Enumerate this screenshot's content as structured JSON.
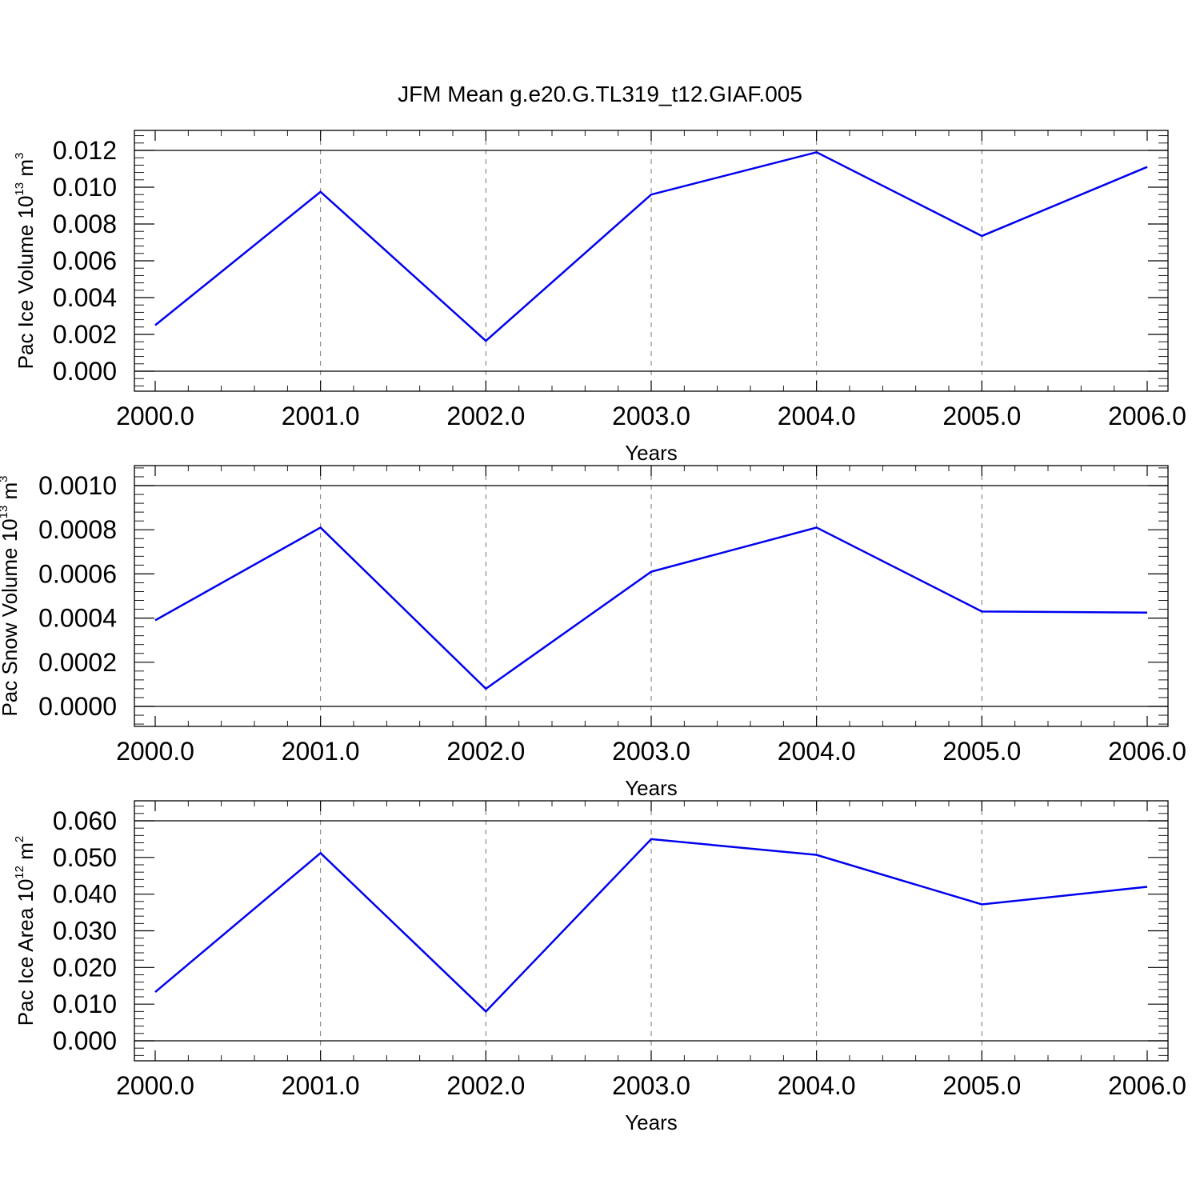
{
  "title": "JFM Mean g.e20.G.TL319_t12.GIAF.005",
  "chart_data": [
    {
      "type": "line",
      "ylabel": {
        "text": "Pac Ice Volume 10",
        "exp": "13",
        "unit": " m",
        "unit_exp": "3"
      },
      "xlabel": "Years",
      "xlim": [
        2000,
        2006
      ],
      "ylim": [
        0,
        0.012
      ],
      "xticks": [
        "2000.0",
        "2001.0",
        "2002.0",
        "2003.0",
        "2004.0",
        "2005.0",
        "2006.0"
      ],
      "yticks": [
        "0.000",
        "0.002",
        "0.004",
        "0.006",
        "0.008",
        "0.010",
        "0.012"
      ],
      "grid": "vertical dashed at major x ticks",
      "series_color": "#0000f0",
      "x": [
        2000,
        2001,
        2002,
        2003,
        2004,
        2005,
        2006
      ],
      "values": [
        0.0025,
        0.00975,
        0.00165,
        0.0096,
        0.0119,
        0.00735,
        0.0111
      ]
    },
    {
      "type": "line",
      "ylabel": {
        "text": "Pac Snow Volume 10",
        "exp": "13",
        "unit": " m",
        "unit_exp": "3"
      },
      "xlabel": "Years",
      "xlim": [
        2000,
        2006
      ],
      "ylim": [
        0,
        0.001
      ],
      "xticks": [
        "2000.0",
        "2001.0",
        "2002.0",
        "2003.0",
        "2004.0",
        "2005.0",
        "2006.0"
      ],
      "yticks": [
        "0.0000",
        "0.0002",
        "0.0004",
        "0.0006",
        "0.0008",
        "0.0010"
      ],
      "grid": "vertical dashed at major x ticks",
      "series_color": "#0000f0",
      "x": [
        2000,
        2001,
        2002,
        2003,
        2004,
        2005,
        2006
      ],
      "values": [
        0.00039,
        0.00081,
        8e-05,
        0.00061,
        0.00081,
        0.00043,
        0.000425
      ]
    },
    {
      "type": "line",
      "ylabel": {
        "text": "Pac Ice Area 10",
        "exp": "12",
        "unit": " m",
        "unit_exp": "2"
      },
      "xlabel": "Years",
      "xlim": [
        2000,
        2006
      ],
      "ylim": [
        0,
        0.06
      ],
      "xticks": [
        "2000.0",
        "2001.0",
        "2002.0",
        "2003.0",
        "2004.0",
        "2005.0",
        "2006.0"
      ],
      "yticks": [
        "0.000",
        "0.010",
        "0.020",
        "0.030",
        "0.040",
        "0.050",
        "0.060"
      ],
      "grid": "vertical dashed at major x ticks",
      "series_color": "#0000f0",
      "x": [
        2000,
        2001,
        2002,
        2003,
        2004,
        2005,
        2006
      ],
      "values": [
        0.0133,
        0.0512,
        0.008,
        0.055,
        0.0507,
        0.0372,
        0.042
      ]
    }
  ]
}
